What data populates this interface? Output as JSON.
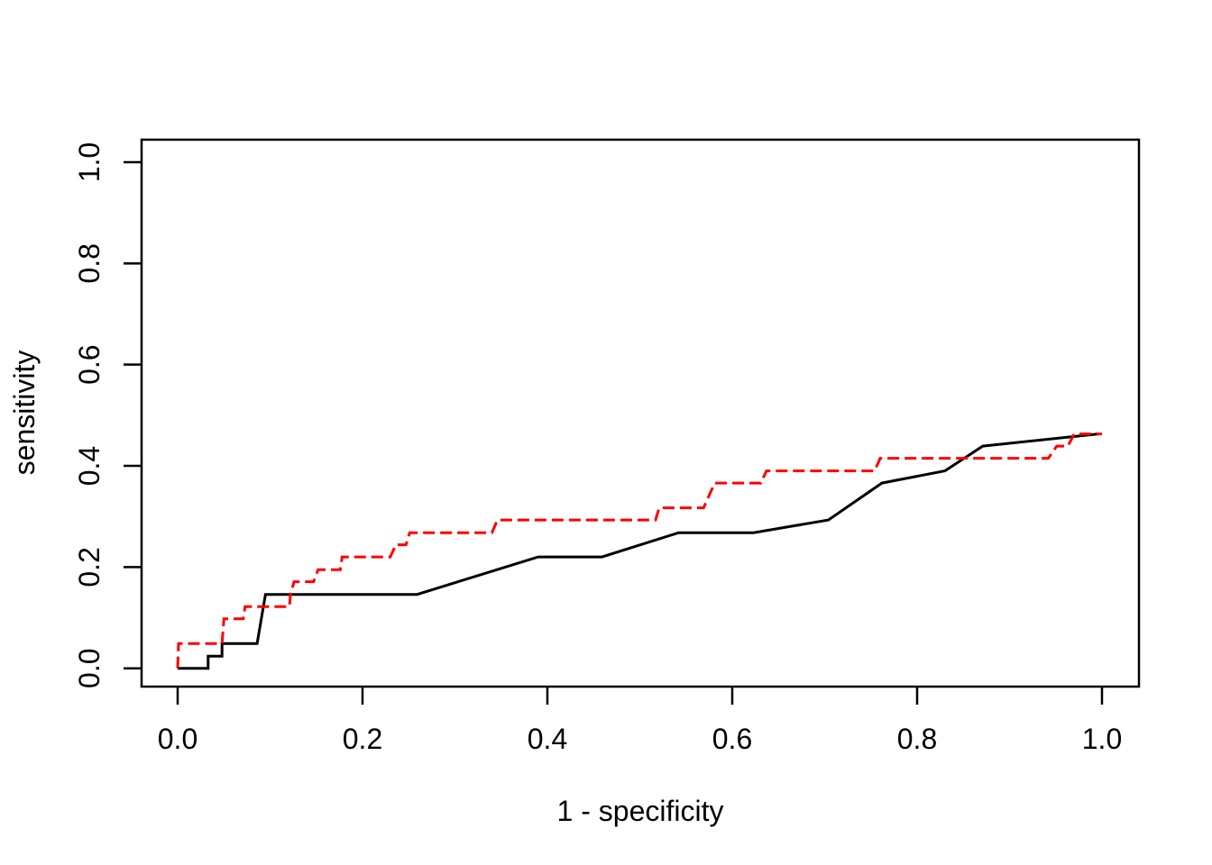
{
  "page": {
    "background_color": "#ffffff"
  },
  "chart_data": {
    "type": "line",
    "subtype": "roc-step-curves",
    "title": "",
    "xlabel": "1 - specificity",
    "ylabel": "sensitivity",
    "xlim": [
      0,
      1
    ],
    "ylim": [
      0,
      1
    ],
    "x_ticks": [
      "0.0",
      "0.2",
      "0.4",
      "0.6",
      "0.8",
      "1.0"
    ],
    "y_ticks": [
      "0.0",
      "0.2",
      "0.4",
      "0.6",
      "0.8",
      "1.0"
    ],
    "grid": false,
    "legend": "none",
    "colors": {
      "series1": "#000000",
      "series2": "#ff0000"
    },
    "series": [
      {
        "name": "roc-curve-black-solid",
        "color": "#000000",
        "line_style": "solid",
        "points": [
          [
            0.0,
            0.0
          ],
          [
            0.033,
            0.0
          ],
          [
            0.033,
            0.024
          ],
          [
            0.048,
            0.024
          ],
          [
            0.048,
            0.049
          ],
          [
            0.086,
            0.049
          ],
          [
            0.095,
            0.146
          ],
          [
            0.259,
            0.146
          ],
          [
            0.39,
            0.22
          ],
          [
            0.459,
            0.22
          ],
          [
            0.542,
            0.268
          ],
          [
            0.623,
            0.268
          ],
          [
            0.704,
            0.293
          ],
          [
            0.762,
            0.366
          ],
          [
            0.83,
            0.39
          ],
          [
            0.871,
            0.439
          ],
          [
            0.996,
            0.463
          ]
        ]
      },
      {
        "name": "roc-curve-red-dashed",
        "color": "#ff0000",
        "line_style": "dashed",
        "points": [
          [
            0.0,
            0.0
          ],
          [
            0.001,
            0.049
          ],
          [
            0.048,
            0.049
          ],
          [
            0.05,
            0.098
          ],
          [
            0.071,
            0.098
          ],
          [
            0.073,
            0.122
          ],
          [
            0.121,
            0.122
          ],
          [
            0.122,
            0.146
          ],
          [
            0.126,
            0.171
          ],
          [
            0.147,
            0.171
          ],
          [
            0.152,
            0.195
          ],
          [
            0.176,
            0.195
          ],
          [
            0.178,
            0.22
          ],
          [
            0.23,
            0.22
          ],
          [
            0.236,
            0.244
          ],
          [
            0.247,
            0.244
          ],
          [
            0.251,
            0.268
          ],
          [
            0.34,
            0.268
          ],
          [
            0.346,
            0.293
          ],
          [
            0.517,
            0.293
          ],
          [
            0.521,
            0.317
          ],
          [
            0.569,
            0.317
          ],
          [
            0.581,
            0.366
          ],
          [
            0.631,
            0.366
          ],
          [
            0.637,
            0.39
          ],
          [
            0.754,
            0.39
          ],
          [
            0.76,
            0.415
          ],
          [
            0.942,
            0.415
          ],
          [
            0.951,
            0.439
          ],
          [
            0.963,
            0.439
          ],
          [
            0.97,
            0.463
          ],
          [
            1.0,
            0.463
          ]
        ]
      }
    ]
  }
}
